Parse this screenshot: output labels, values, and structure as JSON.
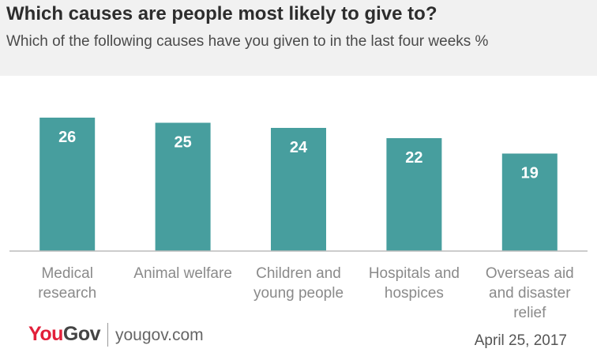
{
  "header": {
    "title": "Which causes are people most likely to give to?",
    "subtitle": "Which of the following causes have you given to in the last four weeks %"
  },
  "colors": {
    "bar": "#479e9e",
    "bar_label": "#ffffff",
    "axis": "#bcbcbc",
    "category_text": "#8a8a8a",
    "header_bg": "#f1f1f1",
    "brand_red": "#e2203a"
  },
  "chart_data": {
    "type": "bar",
    "title": "Which causes are people most likely to give to?",
    "subtitle": "Which of the following causes have you given to in the last four weeks %",
    "categories": [
      [
        "Medical",
        "research"
      ],
      [
        "Animal welfare"
      ],
      [
        "Children and",
        "young people"
      ],
      [
        "Hospitals and",
        "hospices"
      ],
      [
        "Overseas aid",
        "and disaster",
        "relief"
      ]
    ],
    "values": [
      26,
      25,
      24,
      22,
      19
    ],
    "xlabel": "",
    "ylabel": "",
    "ylim": [
      0,
      26
    ],
    "grid": false,
    "legend": "none",
    "data_labels": "inside-top"
  },
  "footer": {
    "logo_you": "You",
    "logo_gov": "Gov",
    "site": "yougov.com",
    "date": "April 25, 2017"
  }
}
